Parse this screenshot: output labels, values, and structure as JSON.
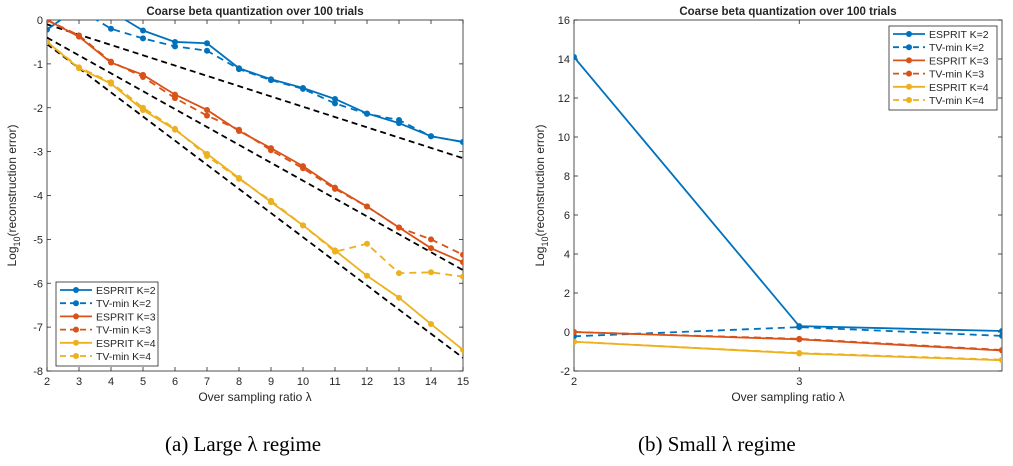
{
  "chart_data": [
    {
      "type": "line",
      "title": "Coarse beta quantization over 100 trials",
      "xlabel": "Over sampling ratio λ",
      "ylabel_main": "Log",
      "ylabel_sub": "10",
      "ylabel_rest": "(reconstruction error)",
      "xlim": [
        2,
        15
      ],
      "ylim": [
        -8,
        0
      ],
      "xticks": [
        "2",
        "3",
        "4",
        "5",
        "6",
        "7",
        "8",
        "9",
        "10",
        "11",
        "12",
        "13",
        "14",
        "15"
      ],
      "yticks": [
        "0",
        "-1",
        "-2",
        "-3",
        "-4",
        "-5",
        "-6",
        "-7",
        "-8"
      ],
      "legend_position": "bottom-left",
      "caption": "(a) Large λ regime",
      "series": [
        {
          "name": "ESPRIT K=2",
          "color": "#0072BD",
          "dash": false,
          "x": [
            2,
            3,
            4,
            5,
            6,
            7,
            8,
            9,
            10,
            11,
            12,
            13,
            14,
            15
          ],
          "y": [
            -0.22,
            0.3,
            0.2,
            -0.24,
            -0.5,
            -0.53,
            -1.1,
            -1.35,
            -1.55,
            -1.8,
            -2.13,
            -2.35,
            -2.65,
            -2.78
          ]
        },
        {
          "name": "TV-min K=2",
          "color": "#0072BD",
          "dash": true,
          "x": [
            2,
            3,
            4,
            5,
            6,
            7,
            8,
            9,
            10,
            11,
            12,
            13,
            14,
            15
          ],
          "y": [
            0.3,
            0.25,
            -0.2,
            -0.42,
            -0.6,
            -0.7,
            -1.12,
            -1.37,
            -1.57,
            -1.9,
            -2.14,
            -2.28,
            -2.65,
            -2.78
          ]
        },
        {
          "name": "ESPRIT K=3",
          "color": "#D95319",
          "dash": false,
          "x": [
            2,
            3,
            4,
            5,
            6,
            7,
            8,
            9,
            10,
            11,
            12,
            13,
            14,
            15
          ],
          "y": [
            0,
            -0.38,
            -0.97,
            -1.25,
            -1.7,
            -2.05,
            -2.53,
            -2.92,
            -3.33,
            -3.82,
            -4.25,
            -4.73,
            -5.2,
            -5.52
          ]
        },
        {
          "name": "TV-min K=3",
          "color": "#D95319",
          "dash": true,
          "x": [
            2,
            3,
            4,
            5,
            6,
            7,
            8,
            9,
            10,
            11,
            12,
            13,
            14,
            15
          ],
          "y": [
            0,
            -0.35,
            -0.95,
            -1.3,
            -1.78,
            -2.18,
            -2.5,
            -2.97,
            -3.38,
            -3.85,
            -4.25,
            -4.73,
            -5.0,
            -5.35
          ]
        },
        {
          "name": "ESPRIT K=4",
          "color": "#EDB120",
          "dash": false,
          "x": [
            2,
            3,
            4,
            5,
            6,
            7,
            8,
            9,
            10,
            11,
            12,
            13,
            14,
            15
          ],
          "y": [
            -0.5,
            -1.1,
            -1.45,
            -2.05,
            -2.5,
            -3.05,
            -3.6,
            -4.15,
            -4.68,
            -5.25,
            -5.83,
            -6.33,
            -6.93,
            -7.52
          ]
        },
        {
          "name": "TV-min K=4",
          "color": "#EDB120",
          "dash": true,
          "x": [
            2,
            3,
            4,
            5,
            6,
            7,
            8,
            9,
            10,
            11,
            12,
            13,
            14,
            15
          ],
          "y": [
            -0.5,
            -1.08,
            -1.42,
            -2.0,
            -2.48,
            -3.1,
            -3.62,
            -4.12,
            -4.68,
            -5.28,
            -5.1,
            -5.77,
            -5.75,
            -5.85
          ]
        }
      ],
      "reference_lines": [
        {
          "color": "#000000",
          "x": [
            2,
            15
          ],
          "y": [
            -0.1,
            -3.15
          ]
        },
        {
          "color": "#000000",
          "x": [
            2,
            15
          ],
          "y": [
            -0.4,
            -5.7
          ]
        },
        {
          "color": "#000000",
          "x": [
            2,
            15
          ],
          "y": [
            -0.55,
            -7.7
          ]
        }
      ]
    },
    {
      "type": "line",
      "title": "Coarse beta quantization over 100 trials",
      "xlabel": "Over sampling ratio λ",
      "ylabel_main": "Log",
      "ylabel_sub": "10",
      "ylabel_rest": "(reconstruction error)",
      "xlim": [
        2,
        3.9
      ],
      "ylim": [
        -2,
        16
      ],
      "xticks": [
        "2",
        "3"
      ],
      "yticks": [
        "16",
        "14",
        "12",
        "10",
        "8",
        "6",
        "4",
        "2",
        "0",
        "-2"
      ],
      "legend_position": "top-right",
      "caption": "(b) Small λ regime",
      "series": [
        {
          "name": "ESPRIT K=2",
          "color": "#0072BD",
          "dash": false,
          "x": [
            2,
            3,
            3.9
          ],
          "y": [
            14.1,
            0.3,
            0.05
          ]
        },
        {
          "name": "TV-min K=2",
          "color": "#0072BD",
          "dash": true,
          "x": [
            2,
            3,
            3.9
          ],
          "y": [
            -0.22,
            0.25,
            -0.2
          ]
        },
        {
          "name": "ESPRIT K=3",
          "color": "#D95319",
          "dash": false,
          "x": [
            2,
            3,
            3.9
          ],
          "y": [
            0,
            -0.38,
            -0.95
          ]
        },
        {
          "name": "TV-min K=3",
          "color": "#D95319",
          "dash": true,
          "x": [
            2,
            3,
            3.9
          ],
          "y": [
            0,
            -0.35,
            -0.92
          ]
        },
        {
          "name": "ESPRIT K=4",
          "color": "#EDB120",
          "dash": false,
          "x": [
            2,
            3,
            3.9
          ],
          "y": [
            -0.5,
            -1.1,
            -1.45
          ]
        },
        {
          "name": "TV-min K=4",
          "color": "#EDB120",
          "dash": true,
          "x": [
            2,
            3,
            3.9
          ],
          "y": [
            -0.5,
            -1.08,
            -1.42
          ]
        }
      ],
      "reference_lines": []
    }
  ]
}
